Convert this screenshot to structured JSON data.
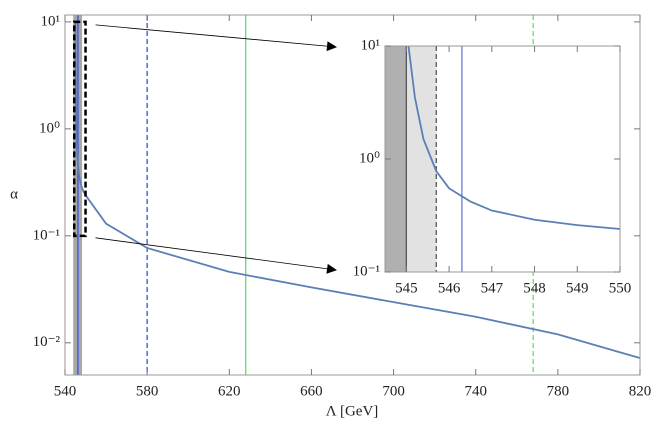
{
  "chart_data": [
    {
      "type": "line",
      "x_label": "Λ [GeV]",
      "y_label": "α",
      "xlim": [
        540,
        820
      ],
      "xticks": [
        540,
        580,
        620,
        660,
        700,
        740,
        780,
        820
      ],
      "ylim": [
        0.005,
        11.6
      ],
      "log_y": true,
      "yticks": [
        {
          "value": 0.01,
          "label": "10⁻²"
        },
        {
          "value": 0.1,
          "label": "10⁻¹"
        },
        {
          "value": 1,
          "label": "10⁰"
        },
        {
          "value": 10,
          "label": "10¹"
        }
      ],
      "series": [
        {
          "color": "#5b7fb5",
          "x": [
            545.05,
            545.2,
            545.4,
            545.7,
            546,
            546.5,
            547,
            548,
            549,
            550,
            560,
            580,
            620,
            660,
            700,
            740,
            780,
            820
          ],
          "values": [
            10,
            3.5,
            1.5,
            0.78,
            0.55,
            0.42,
            0.35,
            0.29,
            0.26,
            0.24,
            0.13,
            0.077,
            0.046,
            0.033,
            0.024,
            0.0175,
            0.012,
            0.0072
          ]
        }
      ],
      "shaded": [
        {
          "from": 544,
          "to": 548.3,
          "color": "#a8a8a8"
        }
      ],
      "vlines": [
        {
          "x": 546.3,
          "color": "#3b4fd8",
          "dashed": false
        },
        {
          "x": 580,
          "color": "#3b4fd8",
          "dashed": true
        },
        {
          "x": 628,
          "color": "#5fe05f",
          "dashed": false
        },
        {
          "x": 768,
          "color": "#5fe05f",
          "dashed": true
        }
      ],
      "zoom_box": {
        "xlim": [
          544.5,
          550
        ],
        "ylim": [
          0.1,
          10
        ]
      }
    },
    {
      "type": "line",
      "xlim": [
        544.5,
        550
      ],
      "xticks": [
        545,
        546,
        547,
        548,
        549,
        550
      ],
      "ylim": [
        0.1,
        10
      ],
      "log_y": true,
      "yticks": [
        {
          "value": 0.1,
          "label": "10⁻¹"
        },
        {
          "value": 1,
          "label": "10⁰"
        },
        {
          "value": 10,
          "label": "10¹"
        }
      ],
      "series": [
        {
          "color": "#5b7fb5",
          "x": [
            545.05,
            545.2,
            545.4,
            545.7,
            546,
            546.5,
            547,
            548,
            549,
            550
          ],
          "values": [
            10,
            3.5,
            1.5,
            0.78,
            0.55,
            0.42,
            0.35,
            0.29,
            0.26,
            0.24
          ]
        }
      ],
      "shaded": [
        {
          "from": 544.5,
          "to": 545,
          "color": "#b0b0b0"
        },
        {
          "from": 545,
          "to": 545.7,
          "color": "#e2e2e2"
        }
      ],
      "vlines": [
        {
          "x": 545,
          "color": "#555555",
          "dashed": false
        },
        {
          "x": 545.7,
          "color": "#555555",
          "dashed": true
        },
        {
          "x": 546.3,
          "color": "#6a7de0",
          "dashed": false
        }
      ]
    }
  ]
}
